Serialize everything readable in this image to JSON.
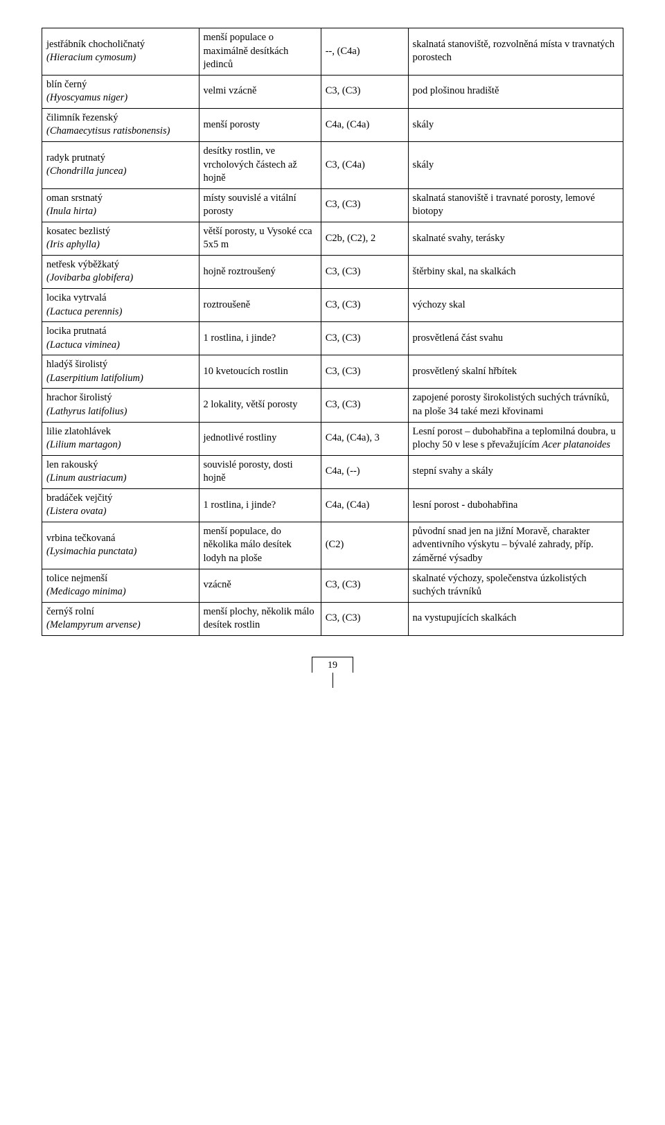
{
  "page_number": "19",
  "table": {
    "rows": [
      {
        "name_cs": "jestřábník chocholičnatý",
        "name_lat": "(Hieracium cymosum)",
        "abundance": "menší populace o maximálně desítkách jedinců",
        "status": "--, (C4a)",
        "habitat": "skalnatá stanoviště, rozvolněná místa v travnatých porostech"
      },
      {
        "name_cs": "blín černý",
        "name_lat": "(Hyoscyamus niger)",
        "abundance": "velmi vzácně",
        "status": "C3, (C3)",
        "habitat": "pod plošinou hradiště"
      },
      {
        "name_cs": "čilimník řezenský",
        "name_lat": "(Chamaecytisus ratisbonensis)",
        "abundance": "menší porosty",
        "status": "C4a, (C4a)",
        "habitat": "skály"
      },
      {
        "name_cs": "radyk prutnatý",
        "name_lat": "(Chondrilla juncea)",
        "abundance": "desítky rostlin, ve vrcholových částech až hojně",
        "status": "C3, (C4a)",
        "habitat": "skály"
      },
      {
        "name_cs": "oman srstnatý",
        "name_lat": "(Inula hirta)",
        "abundance": "místy souvislé a vitální porosty",
        "status": "C3, (C3)",
        "habitat": "skalnatá stanoviště i travnaté porosty, lemové biotopy"
      },
      {
        "name_cs": "kosatec bezlistý",
        "name_lat": "(Iris aphylla)",
        "abundance": "větší porosty, u Vysoké cca 5x5 m",
        "status": "C2b, (C2), 2",
        "habitat": "skalnaté svahy, terásky"
      },
      {
        "name_cs": "netřesk výběžkatý",
        "name_lat": "(Jovibarba globifera)",
        "abundance": "hojně roztroušený",
        "status": "C3, (C3)",
        "habitat": "štěrbiny skal, na skalkách"
      },
      {
        "name_cs": "locika vytrvalá",
        "name_lat": "(Lactuca perennis)",
        "abundance": "roztroušeně",
        "status": "C3, (C3)",
        "habitat": "výchozy skal"
      },
      {
        "name_cs": "locika prutnatá",
        "name_lat": "(Lactuca viminea)",
        "abundance": "1 rostlina, i jinde?",
        "status": "C3, (C3)",
        "habitat": "prosvětlená část svahu"
      },
      {
        "name_cs": "hladýš širolistý",
        "name_lat": "(Laserpitium latifolium)",
        "abundance": "10 kvetoucích rostlin",
        "status": "C3, (C3)",
        "habitat": "prosvětlený skalní hřbítek"
      },
      {
        "name_cs": "hrachor širolistý",
        "name_lat": "(Lathyrus latifolius)",
        "abundance": "2 lokality, větší porosty",
        "status": "C3, (C3)",
        "habitat": "zapojené porosty širokolistých suchých trávníků, na ploše 34 také mezi křovinami"
      },
      {
        "name_cs": "lilie zlatohlávek",
        "name_lat": "(Lilium martagon)",
        "abundance": "jednotlivé rostliny",
        "status": "C4a, (C4a), 3",
        "habitat_pre": "Lesní porost – dubohabřina a teplomilná doubra, u plochy 50 v lese s převažujícím ",
        "habitat_ital": "Acer platanoides"
      },
      {
        "name_cs": "len rakouský",
        "name_lat": "(Linum austriacum)",
        "abundance": "souvislé porosty, dosti hojně",
        "status": "C4a, (--)",
        "habitat": "stepní svahy a skály"
      },
      {
        "name_cs": "bradáček vejčitý",
        "name_lat": "(Listera ovata)",
        "abundance": "1 rostlina, i jinde?",
        "status": "C4a, (C4a)",
        "habitat": "lesní porost - dubohabřina"
      },
      {
        "name_cs": "vrbina tečkovaná",
        "name_lat": "(Lysimachia punctata)",
        "abundance": "menší populace, do několika málo desítek lodyh na ploše",
        "status": "(C2)",
        "habitat": "původní snad jen na jižní Moravě, charakter adventivního výskytu – bývalé zahrady, příp. záměrné výsadby"
      },
      {
        "name_cs": "tolice nejmenší",
        "name_lat": "(Medicago minima)",
        "abundance": "vzácně",
        "status": "C3, (C3)",
        "habitat": "skalnaté výchozy, společenstva úzkolistých suchých trávníků"
      },
      {
        "name_cs": "černýš rolní",
        "name_lat": "(Melampyrum arvense)",
        "abundance": "menší plochy, několik málo desítek rostlin",
        "status": "C3, (C3)",
        "habitat": "na vystupujících skalkách"
      }
    ]
  }
}
